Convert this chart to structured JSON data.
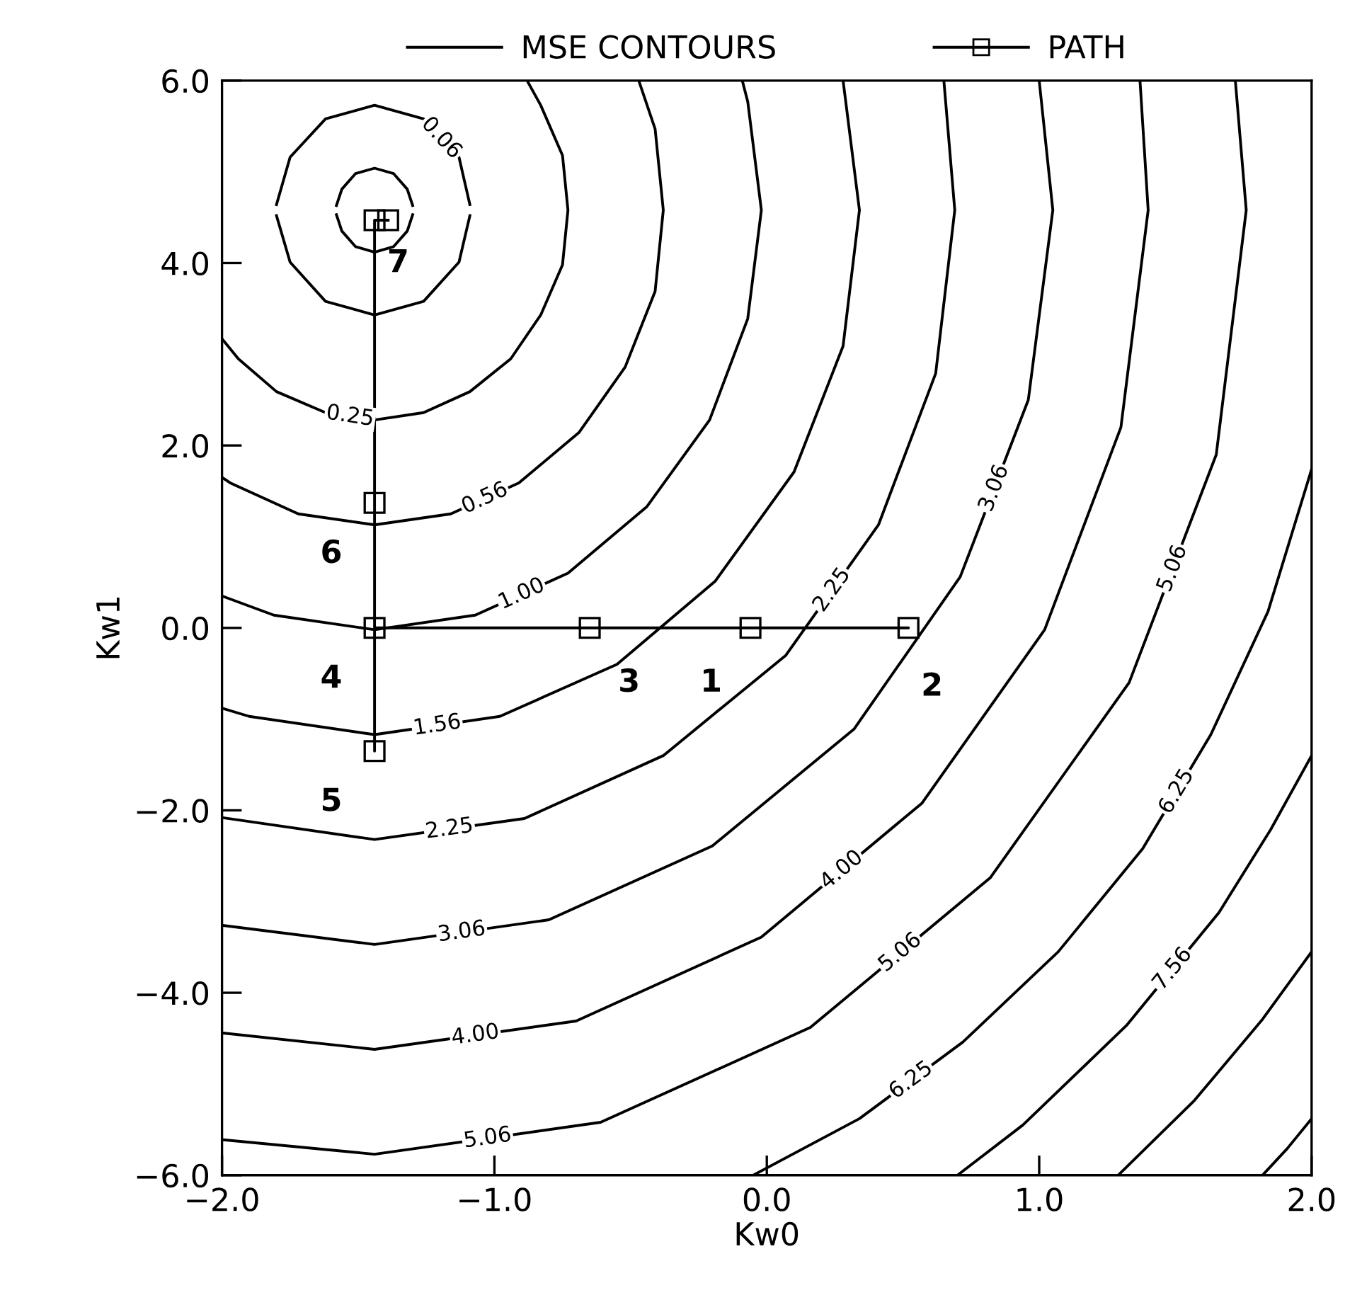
{
  "chart_data": {
    "type": "line",
    "xlabel": "Kw0",
    "ylabel": "Kw1",
    "xlim": [
      -2.0,
      2.0
    ],
    "ylim": [
      -6.0,
      6.0
    ],
    "xticks": [
      {
        "value": -2.0,
        "label": "−2.0"
      },
      {
        "value": -1.0,
        "label": "−1.0"
      },
      {
        "value": 0.0,
        "label": "0.0"
      },
      {
        "value": 1.0,
        "label": "1.0"
      },
      {
        "value": 2.0,
        "label": "2.0"
      }
    ],
    "yticks": [
      {
        "value": -6.0,
        "label": "−6.0"
      },
      {
        "value": -4.0,
        "label": "−4.0"
      },
      {
        "value": -2.0,
        "label": "−2.0"
      },
      {
        "value": 0.0,
        "label": "0.0"
      },
      {
        "value": 2.0,
        "label": "2.0"
      },
      {
        "value": 4.0,
        "label": "4.0"
      },
      {
        "value": 6.0,
        "label": "6.0"
      }
    ],
    "grid": false,
    "legend": "top",
    "line_style": "solid",
    "series": [
      {
        "name": "MSE CONTOURS",
        "color": "#000000",
        "marker": "none",
        "x": [
          -1.3,
          -1.32,
          -1.37,
          -1.44,
          -1.51,
          -1.56,
          -1.58
        ],
        "values": [
          4.63,
          4.81,
          4.98,
          5.04,
          4.98,
          4.81,
          4.63
        ]
      },
      {
        "color": "#000000",
        "marker": "none",
        "x": [
          -1.58,
          -1.56,
          -1.51,
          -1.44,
          -1.37,
          -1.32,
          -1.3
        ],
        "values": [
          4.53,
          4.35,
          4.18,
          4.12,
          4.18,
          4.35,
          4.53
        ]
      },
      {
        "color": "#000000",
        "marker": "none",
        "x": [
          -1.09,
          -1.13,
          -1.26,
          -1.44,
          -1.62,
          -1.75,
          -1.8
        ],
        "values": [
          4.64,
          5.16,
          5.58,
          5.73,
          5.58,
          5.16,
          4.64
        ]
      },
      {
        "color": "#000000",
        "marker": "none",
        "x": [
          -1.8,
          -1.75,
          -1.62,
          -1.44,
          -1.26,
          -1.13,
          -1.09
        ],
        "values": [
          4.52,
          4.01,
          3.58,
          3.43,
          3.58,
          4.01,
          4.52
        ]
      },
      {
        "color": "#000000",
        "marker": "none",
        "x": [
          -0.88,
          -0.83,
          -0.75,
          -0.73,
          -0.75,
          -0.83,
          -0.94,
          -1.09,
          -1.26,
          -1.44,
          -1.62,
          -1.8,
          -1.94,
          -2.0
        ],
        "values": [
          6.0,
          5.73,
          5.18,
          4.58,
          3.98,
          3.43,
          2.95,
          2.59,
          2.36,
          2.28,
          2.36,
          2.59,
          2.95,
          3.17
        ]
      },
      {
        "color": "#000000",
        "marker": "none",
        "x": [
          -0.47,
          -0.41,
          -0.38,
          -0.41,
          -0.52,
          -0.69,
          -0.91,
          -1.16,
          -1.44,
          -1.72,
          -1.97,
          -2.0
        ],
        "values": [
          6.0,
          5.47,
          4.58,
          3.69,
          2.86,
          2.14,
          1.59,
          1.25,
          1.13,
          1.25,
          1.59,
          1.65
        ]
      },
      {
        "color": "#000000",
        "marker": "none",
        "x": [
          -0.09,
          -0.07,
          -0.02,
          -0.07,
          -0.21,
          -0.44,
          -0.73,
          -1.07,
          -1.44,
          -1.81,
          -2.0
        ],
        "values": [
          6.0,
          5.77,
          4.58,
          3.39,
          2.28,
          1.33,
          0.6,
          0.14,
          -0.02,
          0.14,
          0.35
        ]
      },
      {
        "color": "#000000",
        "marker": "none",
        "x": [
          0.28,
          0.34,
          0.28,
          0.1,
          -0.19,
          -0.55,
          -0.98,
          -1.44,
          -1.9,
          -2.0
        ],
        "values": [
          6.0,
          4.58,
          3.09,
          1.71,
          0.51,
          -0.4,
          -0.97,
          -1.17,
          -0.97,
          -0.88
        ]
      },
      {
        "color": "#000000",
        "marker": "none",
        "x": [
          0.65,
          0.69,
          0.62,
          0.41,
          0.07,
          -0.38,
          -0.89,
          -1.44,
          -2.0
        ],
        "values": [
          6.0,
          4.58,
          2.79,
          1.13,
          -0.3,
          -1.4,
          -2.09,
          -2.32,
          -2.08
        ]
      },
      {
        "color": "#000000",
        "marker": "none",
        "x": [
          1.0,
          1.05,
          0.96,
          0.71,
          0.32,
          -0.2,
          -0.8,
          -1.44,
          -2.0
        ],
        "values": [
          6.0,
          4.58,
          2.5,
          0.56,
          -1.11,
          -2.39,
          -3.2,
          -3.47,
          -3.26
        ]
      },
      {
        "color": "#000000",
        "marker": "none",
        "x": [
          1.37,
          1.4,
          1.3,
          1.02,
          0.57,
          -0.02,
          -0.7,
          -1.44,
          -2.0
        ],
        "values": [
          6.0,
          4.58,
          2.2,
          -0.02,
          -1.92,
          -3.39,
          -4.31,
          -4.62,
          -4.44
        ]
      },
      {
        "color": "#000000",
        "marker": "none",
        "x": [
          1.72,
          1.76,
          1.65,
          1.33,
          0.82,
          0.16,
          -0.61,
          -1.44,
          -2.0
        ],
        "values": [
          6.0,
          4.58,
          1.9,
          -0.6,
          -2.74,
          -4.38,
          -5.42,
          -5.77,
          -5.61
        ]
      },
      {
        "color": "#000000",
        "marker": "none",
        "x": [
          2.0,
          1.84,
          1.63,
          1.38,
          1.07,
          0.72,
          0.34,
          -0.05
        ],
        "values": [
          1.74,
          0.18,
          -1.17,
          -2.42,
          -3.55,
          -4.54,
          -5.38,
          -6.0
        ]
      },
      {
        "color": "#000000",
        "marker": "none",
        "x": [
          2.0,
          1.85,
          1.66,
          1.32,
          0.94,
          0.7
        ],
        "values": [
          -1.4,
          -2.21,
          -3.12,
          -4.36,
          -5.45,
          -6.0
        ]
      },
      {
        "color": "#000000",
        "marker": "none",
        "x": [
          2.0,
          1.82,
          1.57,
          1.29
        ],
        "values": [
          -3.55,
          -4.29,
          -5.18,
          -6.0
        ]
      },
      {
        "color": "#000000",
        "marker": "none",
        "x": [
          2.0,
          1.91,
          1.82
        ],
        "values": [
          -5.38,
          -5.71,
          -6.0
        ]
      },
      {
        "name": "PATH",
        "color": "#000000",
        "marker": "square",
        "x": [
          -0.06,
          0.52,
          -0.65,
          -1.44,
          -1.44,
          -1.44,
          -1.44,
          -1.39
        ],
        "values": [
          0.0,
          0.0,
          0.0,
          0.0,
          -1.35,
          1.37,
          4.47,
          4.47
        ]
      }
    ],
    "annotations": [
      {
        "text": "0.06",
        "x": -1.195,
        "y": 5.37
      },
      {
        "text": "0.25",
        "x": -1.53,
        "y": 2.32
      },
      {
        "text": "0.56",
        "x": -1.035,
        "y": 1.42
      },
      {
        "text": "1.00",
        "x": -0.9,
        "y": 0.37
      },
      {
        "text": "1.56",
        "x": -1.21,
        "y": -1.07
      },
      {
        "text": "2.25",
        "x": -1.165,
        "y": -2.205
      },
      {
        "text": "2.25",
        "x": 0.24,
        "y": 0.415
      },
      {
        "text": "3.06",
        "x": -1.12,
        "y": -3.335
      },
      {
        "text": "3.06",
        "x": 0.835,
        "y": 1.53
      },
      {
        "text": "4.00",
        "x": -1.07,
        "y": -4.465
      },
      {
        "text": "4.00",
        "x": 0.275,
        "y": -2.655
      },
      {
        "text": "5.06",
        "x": -1.025,
        "y": -5.595
      },
      {
        "text": "5.06",
        "x": 0.49,
        "y": -3.56
      },
      {
        "text": "5.06",
        "x": 1.49,
        "y": 0.65
      },
      {
        "text": "6.25",
        "x": 0.53,
        "y": -4.96
      },
      {
        "text": "6.25",
        "x": 1.505,
        "y": -1.795
      },
      {
        "text": "7.56",
        "x": 1.49,
        "y": -3.74
      },
      {
        "text": "1",
        "x": -0.06,
        "y": 0.0
      },
      {
        "text": "2",
        "x": 0.52,
        "y": 0.0
      },
      {
        "text": "3",
        "x": -0.65,
        "y": 0.0
      },
      {
        "text": "4",
        "x": -1.44,
        "y": 0.0
      },
      {
        "text": "5",
        "x": -1.44,
        "y": -1.35
      },
      {
        "text": "6",
        "x": -1.44,
        "y": 1.37
      },
      {
        "text": "7",
        "x": -1.44,
        "y": 4.47
      }
    ]
  }
}
